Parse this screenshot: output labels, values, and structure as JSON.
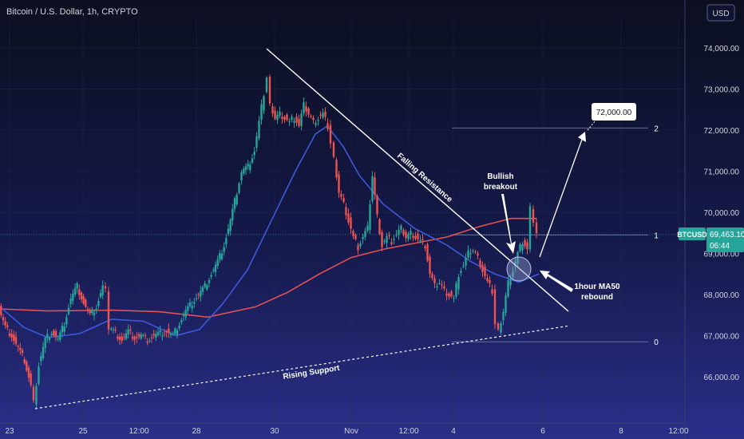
{
  "chart_data": {
    "type": "candlestick",
    "title": "Bitcoin / U.S. Dollar, 1h, CRYPTO",
    "currency_button": "USD",
    "symbol_tag": "BTCUSD",
    "last_price": "69,463.10",
    "countdown": "06:44",
    "y_ticks": [
      "74,000.00",
      "73,000.00",
      "72,000.00",
      "71,000.00",
      "70,000.00",
      "69,000.00",
      "68,000.00",
      "67,000.00",
      "66,000.00"
    ],
    "x_ticks": [
      "23",
      "25",
      "12:00",
      "28",
      "30",
      "Nov",
      "12:00",
      "4",
      "6",
      "8",
      "12:00"
    ],
    "ylim": [
      65200,
      74800
    ],
    "fib_levels": [
      {
        "label": "2",
        "value": 72050
      },
      {
        "label": "1",
        "value": 69450
      },
      {
        "label": "0",
        "value": 66850
      }
    ],
    "annotations": {
      "falling_resistance": "Falling Resistance",
      "rising_support": "Rising Support",
      "bullish_breakout_line1": "Bullish",
      "bullish_breakout_line2": "breakout",
      "ma_rebound_line1": "1hour MA50",
      "ma_rebound_line2": "rebound",
      "target": "72,000.00"
    },
    "price_path": [
      [
        0,
        67650
      ],
      [
        8,
        67200
      ],
      [
        16,
        67000
      ],
      [
        24,
        66700
      ],
      [
        32,
        66400
      ],
      [
        40,
        65800
      ],
      [
        44,
        65400
      ],
      [
        50,
        66300
      ],
      [
        58,
        66900
      ],
      [
        66,
        67100
      ],
      [
        74,
        66900
      ],
      [
        82,
        67300
      ],
      [
        90,
        67900
      ],
      [
        98,
        68200
      ],
      [
        106,
        67800
      ],
      [
        114,
        67500
      ],
      [
        122,
        67700
      ],
      [
        130,
        68200
      ],
      [
        134,
        68100
      ],
      [
        138,
        67200
      ],
      [
        146,
        67050
      ],
      [
        154,
        66900
      ],
      [
        162,
        67100
      ],
      [
        170,
        66950
      ],
      [
        178,
        67000
      ],
      [
        186,
        66900
      ],
      [
        194,
        67000
      ],
      [
        202,
        67050
      ],
      [
        210,
        67100
      ],
      [
        218,
        67000
      ],
      [
        226,
        67300
      ],
      [
        234,
        67600
      ],
      [
        242,
        67800
      ],
      [
        250,
        68000
      ],
      [
        258,
        68200
      ],
      [
        266,
        68500
      ],
      [
        274,
        68800
      ],
      [
        282,
        69200
      ],
      [
        290,
        69800
      ],
      [
        298,
        70500
      ],
      [
        304,
        71000
      ],
      [
        312,
        71100
      ],
      [
        320,
        71500
      ],
      [
        326,
        72200
      ],
      [
        332,
        72900
      ],
      [
        336,
        73300
      ],
      [
        340,
        72600
      ],
      [
        346,
        72300
      ],
      [
        352,
        72400
      ],
      [
        358,
        72300
      ],
      [
        364,
        72200
      ],
      [
        370,
        72300
      ],
      [
        376,
        72100
      ],
      [
        382,
        72600
      ],
      [
        388,
        72400
      ],
      [
        394,
        72200
      ],
      [
        400,
        72300
      ],
      [
        406,
        72400
      ],
      [
        412,
        72100
      ],
      [
        416,
        71700
      ],
      [
        420,
        71300
      ],
      [
        426,
        70500
      ],
      [
        432,
        70200
      ],
      [
        438,
        69800
      ],
      [
        444,
        69400
      ],
      [
        450,
        69150
      ],
      [
        456,
        69400
      ],
      [
        462,
        69600
      ],
      [
        468,
        70900
      ],
      [
        474,
        69900
      ],
      [
        480,
        69200
      ],
      [
        486,
        69400
      ],
      [
        492,
        69300
      ],
      [
        498,
        69450
      ],
      [
        504,
        69600
      ],
      [
        510,
        69400
      ],
      [
        516,
        69500
      ],
      [
        522,
        69400
      ],
      [
        528,
        69300
      ],
      [
        534,
        69200
      ],
      [
        540,
        68500
      ],
      [
        546,
        68200
      ],
      [
        552,
        68300
      ],
      [
        558,
        68100
      ],
      [
        564,
        68000
      ],
      [
        570,
        67900
      ],
      [
        576,
        68500
      ],
      [
        582,
        68700
      ],
      [
        588,
        69000
      ],
      [
        594,
        69100
      ],
      [
        600,
        68900
      ],
      [
        606,
        68600
      ],
      [
        612,
        68300
      ],
      [
        618,
        68100
      ],
      [
        622,
        67300
      ],
      [
        626,
        67100
      ],
      [
        632,
        67600
      ],
      [
        638,
        68300
      ],
      [
        644,
        68600
      ],
      [
        650,
        69000
      ],
      [
        656,
        69300
      ],
      [
        662,
        69100
      ],
      [
        666,
        70100
      ],
      [
        670,
        69800
      ],
      [
        674,
        69463
      ]
    ]
  }
}
